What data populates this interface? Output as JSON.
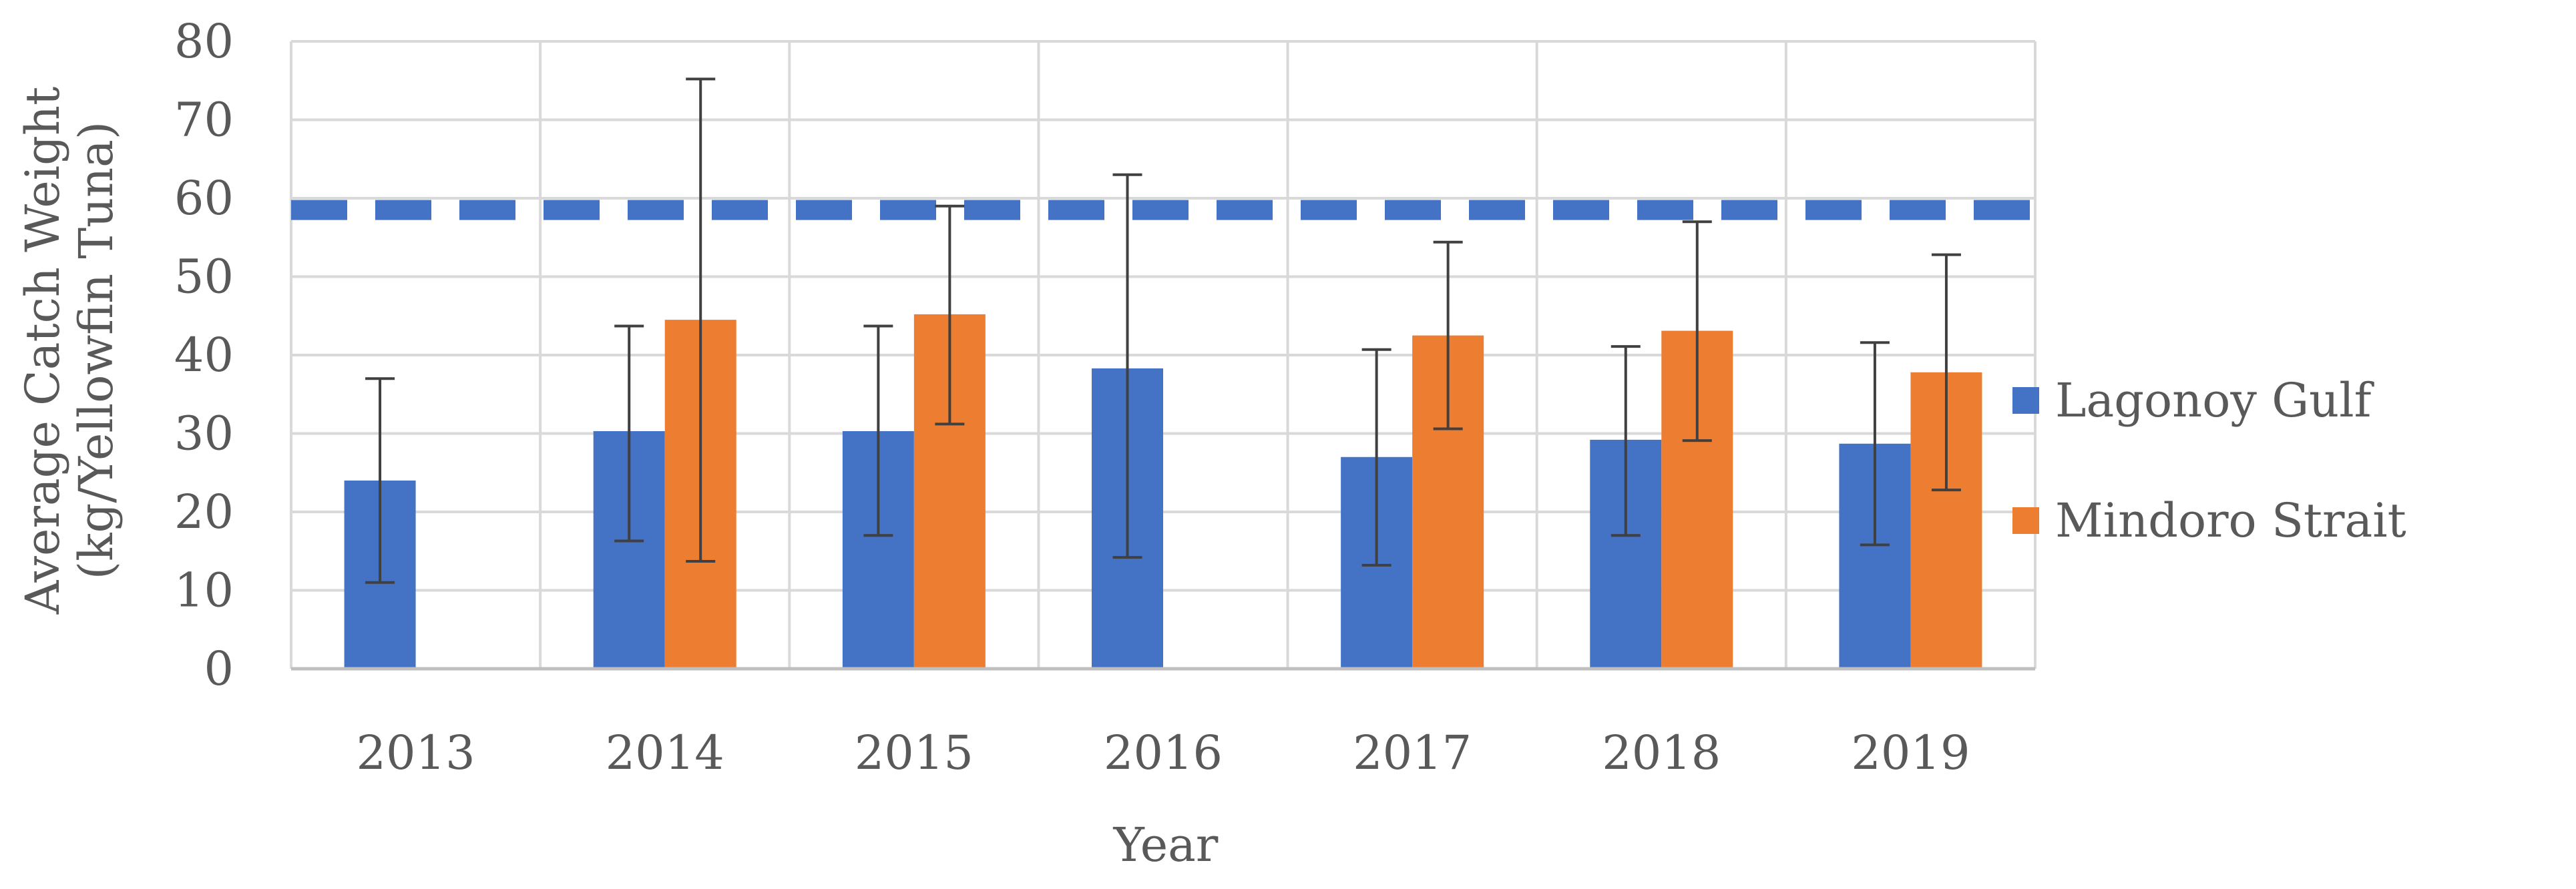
{
  "chart_data": {
    "type": "bar",
    "title": "",
    "xlabel": "Year",
    "ylabel_lines": [
      "Average Catch Weight",
      "(kg/Yellowfin Tuna)"
    ],
    "ylim": [
      0,
      80
    ],
    "yticks": [
      "0",
      "10",
      "20",
      "30",
      "40",
      "50",
      "60",
      "70",
      "80"
    ],
    "grid": true,
    "legend_position": "right",
    "categories": [
      "2013",
      "2014",
      "2015",
      "2016",
      "2017",
      "2018",
      "2019"
    ],
    "series": [
      {
        "name": "Lagonoy Gulf",
        "color": "#4472C4",
        "values": [
          24,
          30.3,
          30.3,
          38.3,
          27,
          29.2,
          28.7
        ],
        "error_low": [
          11,
          16.3,
          17,
          14.2,
          13.2,
          17,
          15.8
        ],
        "error_high": [
          37,
          43.7,
          43.7,
          63,
          40.7,
          41.1,
          41.6
        ]
      },
      {
        "name": "Mindoro Strait",
        "color": "#ED7D31",
        "values": [
          null,
          44.5,
          45.2,
          null,
          42.5,
          43.1,
          37.8
        ],
        "error_low": [
          null,
          13.7,
          31.2,
          null,
          30.6,
          29.1,
          22.8
        ],
        "error_high": [
          null,
          75.2,
          59,
          null,
          54.4,
          57,
          52.8
        ]
      }
    ],
    "reference_line": {
      "value": 58.5,
      "color": "#4472C4",
      "style": "dashed"
    }
  }
}
